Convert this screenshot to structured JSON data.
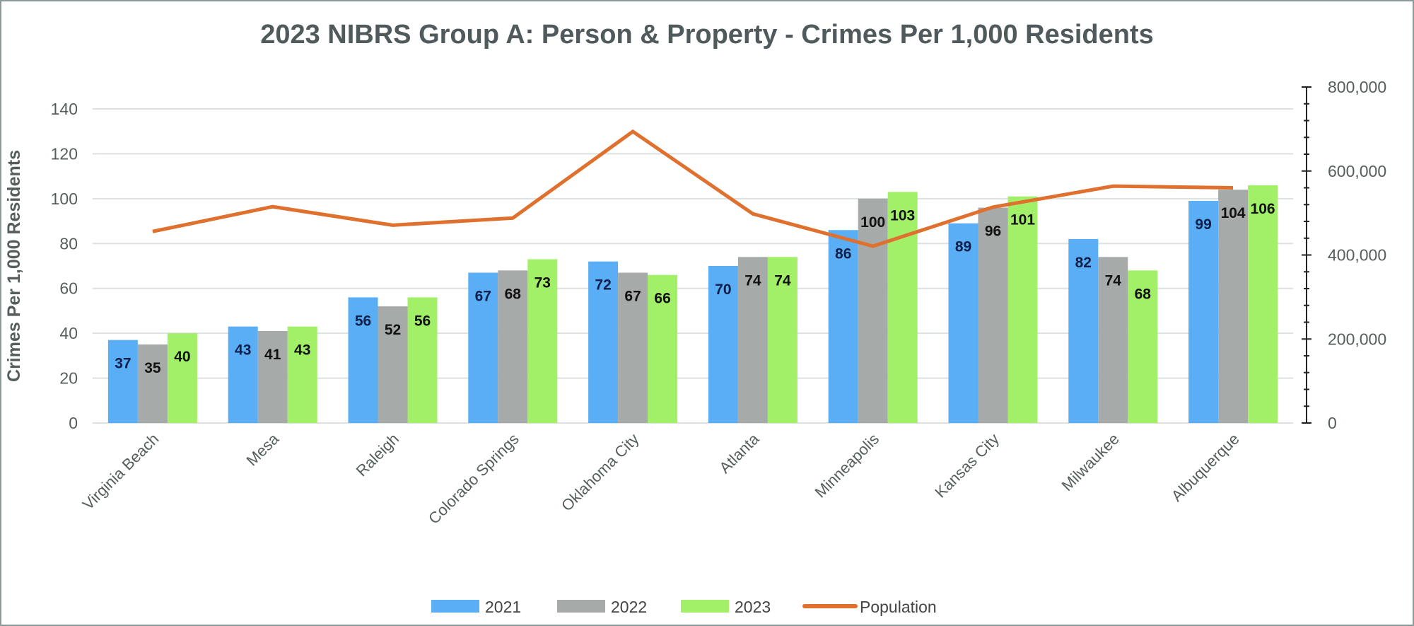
{
  "chart_data": {
    "type": "bar",
    "title": "2023 NIBRS Group A: Person & Property - Crimes Per 1,000 Residents",
    "ylabel": "Crimes Per 1,000 Residents",
    "y2label": "",
    "ylim": [
      0,
      140
    ],
    "y2lim": [
      0,
      800000
    ],
    "yticks": [
      "0",
      "20",
      "40",
      "60",
      "80",
      "100",
      "120",
      "140"
    ],
    "y2ticks": [
      "0",
      "200,000",
      "400,000",
      "600,000",
      "800,000"
    ],
    "grid": true,
    "legend": "bottom",
    "categories": [
      "Virginia Beach",
      "Mesa",
      "Raleigh",
      "Colorado Springs",
      "Oklahoma City",
      "Atlanta",
      "Minneapolis",
      "Kansas City",
      "Milwaukee",
      "Albuquerque"
    ],
    "series": [
      {
        "name": "2021",
        "type": "bar",
        "color": "#5aaef5",
        "label_color": "#0d1f4a",
        "values": [
          37,
          43,
          56,
          67,
          72,
          70,
          86,
          89,
          82,
          99
        ]
      },
      {
        "name": "2022",
        "type": "bar",
        "color": "#a6aaa9",
        "label_color": "#111111",
        "values": [
          35,
          41,
          52,
          68,
          67,
          74,
          100,
          96,
          74,
          104
        ]
      },
      {
        "name": "2023",
        "type": "bar",
        "color": "#a2ef68",
        "label_color": "#111111",
        "values": [
          40,
          43,
          56,
          73,
          66,
          74,
          103,
          101,
          68,
          106
        ]
      },
      {
        "name": "Population",
        "type": "line",
        "axis": "right",
        "color": "#e0702e",
        "values": [
          456000,
          515000,
          471000,
          488000,
          694000,
          498000,
          421000,
          514000,
          564000,
          560000
        ]
      }
    ]
  }
}
